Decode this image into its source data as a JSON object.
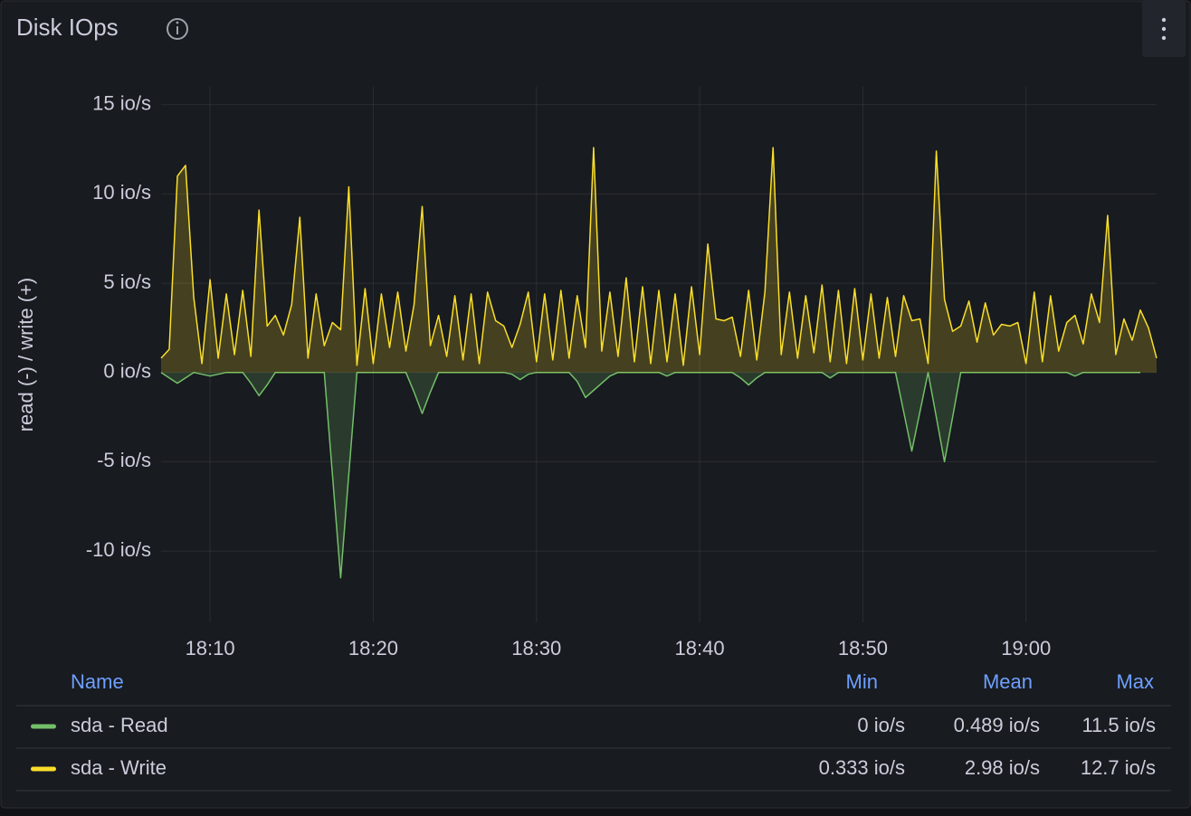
{
  "chart_data": {
    "type": "line",
    "title": "Disk IOps",
    "y_label": "read (-) / write (+)",
    "x": [
      1087,
      1087.5,
      1088,
      1088.5,
      1089,
      1089.5,
      1090,
      1090.5,
      1091,
      1091.5,
      1092,
      1092.5,
      1093,
      1093.5,
      1094,
      1094.5,
      1095,
      1095.5,
      1096,
      1096.5,
      1097,
      1097.5,
      1098,
      1098.5,
      1099,
      1099.5,
      1100,
      1100.5,
      1101,
      1101.5,
      1102,
      1102.5,
      1103,
      1103.5,
      1104,
      1104.5,
      1105,
      1105.5,
      1106,
      1106.5,
      1107,
      1107.5,
      1108,
      1108.5,
      1109,
      1109.5,
      1110,
      1110.5,
      1111,
      1111.5,
      1112,
      1112.5,
      1113,
      1113.5,
      1114,
      1114.5,
      1115,
      1115.5,
      1116,
      1116.5,
      1117,
      1117.5,
      1118,
      1118.5,
      1119,
      1119.5,
      1120,
      1120.5,
      1121,
      1121.5,
      1122,
      1122.5,
      1123,
      1123.5,
      1124,
      1124.5,
      1125,
      1125.5,
      1126,
      1126.5,
      1127,
      1127.5,
      1128,
      1128.5,
      1129,
      1129.5,
      1130,
      1130.5,
      1131,
      1131.5,
      1132,
      1132.5,
      1133,
      1133.5,
      1134,
      1134.5,
      1135,
      1135.5,
      1136,
      1136.5,
      1137,
      1137.5,
      1138,
      1138.5,
      1139,
      1139.5,
      1140,
      1140.5,
      1141,
      1141.5,
      1142,
      1142.5,
      1143,
      1143.5,
      1144,
      1144.5,
      1145,
      1145.5,
      1146,
      1146.5,
      1147,
      1147.5,
      1148
    ],
    "series": [
      {
        "name": "sda - Read",
        "color": "#73bf69",
        "values": [
          0,
          -0.3,
          -0.6,
          -0.3,
          0,
          -0.1,
          -0.2,
          -0.1,
          0,
          0,
          0,
          -0.6,
          -1.3,
          -0.7,
          0,
          0,
          0,
          0,
          0,
          0,
          0,
          -5.7,
          -11.5,
          -5.7,
          0,
          0,
          0,
          0,
          0,
          0,
          0,
          -1.1,
          -2.3,
          -1.1,
          0,
          0,
          0,
          0,
          0,
          0,
          0,
          0,
          0,
          -0.1,
          -0.4,
          -0.1,
          0,
          0,
          0,
          0,
          0,
          -0.5,
          -1.4,
          -1.0,
          -0.6,
          -0.2,
          0,
          0,
          0,
          0,
          0,
          0,
          -0.2,
          0,
          0,
          0,
          0,
          0,
          0,
          0,
          0,
          -0.3,
          -0.7,
          -0.3,
          0,
          0,
          0,
          0,
          0,
          0,
          0,
          0,
          -0.3,
          0,
          0,
          0,
          0,
          0,
          0,
          0,
          0,
          -2.2,
          -4.4,
          -2.2,
          0,
          -2.5,
          -5,
          -2.5,
          0,
          0,
          0,
          0,
          0,
          0,
          0,
          0,
          0,
          0,
          0,
          0,
          0,
          0,
          -0.2,
          0,
          0,
          0,
          0,
          0,
          0,
          0,
          0,
          null,
          null
        ]
      },
      {
        "name": "sda - Write",
        "color": "#fade2a",
        "values": [
          0.8,
          1.3,
          11,
          11.6,
          4.2,
          0.5,
          5.2,
          0.8,
          4.4,
          1.0,
          4.6,
          0.9,
          9.1,
          2.6,
          3.2,
          2.1,
          3.8,
          8.7,
          0.8,
          4.4,
          1.5,
          2.8,
          2.4,
          10.4,
          0.4,
          4.7,
          0.5,
          4.4,
          1.4,
          4.5,
          1.2,
          3.8,
          9.3,
          1.5,
          3.2,
          0.9,
          4.3,
          0.7,
          4.4,
          0.5,
          4.5,
          2.9,
          2.6,
          1.4,
          2.7,
          4.5,
          0.6,
          4.4,
          0.7,
          4.6,
          0.8,
          4.3,
          1.4,
          12.6,
          1.2,
          4.5,
          0.9,
          5.3,
          0.6,
          4.8,
          0.5,
          4.6,
          0.6,
          4.4,
          0.4,
          4.8,
          1.0,
          7.2,
          3.0,
          2.9,
          3.1,
          0.9,
          4.6,
          0.7,
          4.5,
          12.6,
          1.0,
          4.5,
          0.8,
          4.3,
          1.1,
          4.9,
          0.6,
          4.6,
          0.5,
          4.7,
          0.7,
          4.4,
          0.8,
          4.2,
          0.9,
          4.3,
          2.9,
          3.0,
          0.5,
          12.4,
          4.1,
          2.3,
          2.6,
          4.0,
          1.7,
          3.9,
          2.1,
          2.7,
          2.6,
          2.8,
          0.5,
          4.5,
          0.6,
          4.3,
          1.2,
          2.8,
          3.2,
          1.6,
          4.4,
          2.8,
          8.8,
          1.0,
          3.0,
          1.8,
          3.5,
          2.5,
          0.8
        ]
      }
    ],
    "xlim": [
      1087,
      1148
    ],
    "xticks": [
      {
        "value": 1090,
        "label": "18:10"
      },
      {
        "value": 1100,
        "label": "18:20"
      },
      {
        "value": 1110,
        "label": "18:30"
      },
      {
        "value": 1120,
        "label": "18:40"
      },
      {
        "value": 1130,
        "label": "18:50"
      },
      {
        "value": 1140,
        "label": "19:00"
      }
    ],
    "ylim": [
      -14,
      16
    ],
    "yticks": [
      {
        "value": -10,
        "label": "-10 io/s"
      },
      {
        "value": -5,
        "label": "-5 io/s"
      },
      {
        "value": 0,
        "label": "0 io/s"
      },
      {
        "value": 5,
        "label": "5 io/s"
      },
      {
        "value": 10,
        "label": "10 io/s"
      },
      {
        "value": 15,
        "label": "15 io/s"
      }
    ],
    "grid": true,
    "legend": {
      "columns": [
        "Name",
        "Min",
        "Mean",
        "Max"
      ],
      "rows": [
        [
          "0 io/s",
          "0.489 io/s",
          "11.5 io/s"
        ],
        [
          "0.333 io/s",
          "2.98 io/s",
          "12.7 io/s"
        ]
      ]
    }
  }
}
